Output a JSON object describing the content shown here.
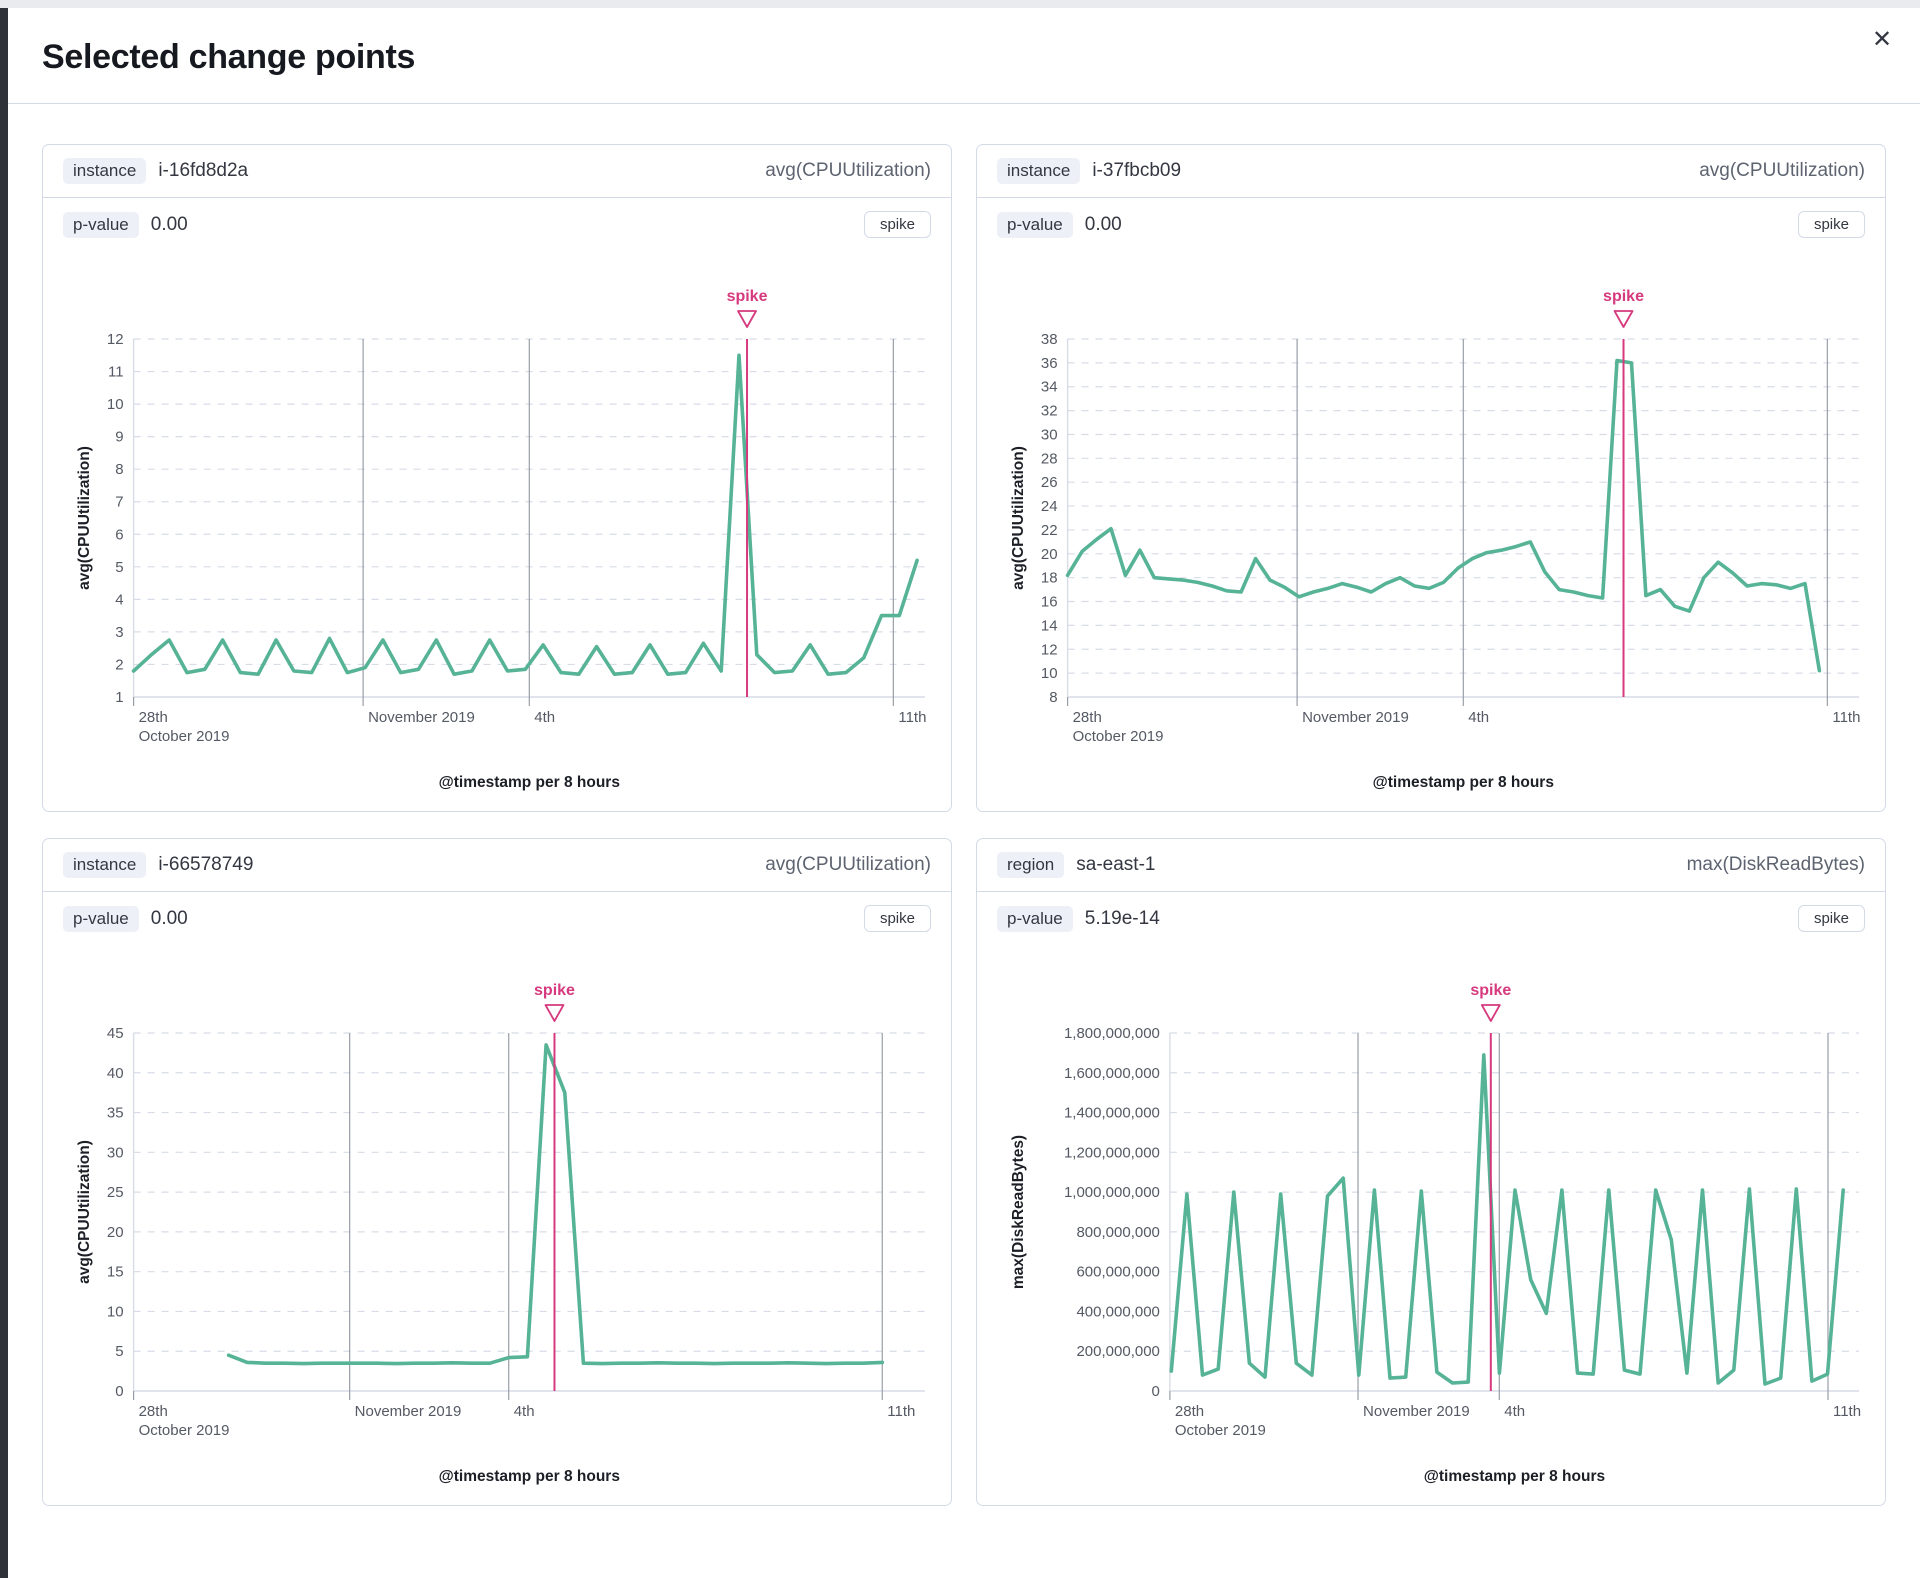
{
  "modal": {
    "title": "Selected change points",
    "close_icon": "✕"
  },
  "colors": {
    "line": "#56b396",
    "annotation": "#d6397d",
    "grid": "#d8dce7",
    "date_line": "#989ea8",
    "tick_text": "#545963",
    "axis_title": "#1c1f26"
  },
  "panels": [
    {
      "field_badge": "instance",
      "field_value": "i-16fd8d2a",
      "metric": "avg(CPUUtilization)",
      "pvalue_label": "p-value",
      "pvalue": "0.00",
      "change_type": "spike"
    },
    {
      "field_badge": "instance",
      "field_value": "i-37fbcb09",
      "metric": "avg(CPUUtilization)",
      "pvalue_label": "p-value",
      "pvalue": "0.00",
      "change_type": "spike"
    },
    {
      "field_badge": "instance",
      "field_value": "i-66578749",
      "metric": "avg(CPUUtilization)",
      "pvalue_label": "p-value",
      "pvalue": "0.00",
      "change_type": "spike"
    },
    {
      "field_badge": "region",
      "field_value": "sa-east-1",
      "metric": "max(DiskReadBytes)",
      "pvalue_label": "p-value",
      "pvalue": "5.19e-14",
      "change_type": "spike"
    }
  ],
  "chart_data": [
    {
      "type": "line",
      "title": "instance i-16fd8d2a avg(CPUUtilization)",
      "ylabel": "avg(CPUUtilization)",
      "xlabel": "@timestamp per 8 hours",
      "ylim": [
        1,
        12
      ],
      "yticks": [
        1,
        2,
        3,
        4,
        5,
        6,
        7,
        8,
        9,
        10,
        11,
        12
      ],
      "xticks": [
        {
          "lines": [
            "28th",
            "October 2019"
          ],
          "frac": 0.0,
          "grid_line": false
        },
        {
          "lines": [
            "November 2019"
          ],
          "frac": 0.29,
          "grid_line": true
        },
        {
          "lines": [
            "4th"
          ],
          "frac": 0.5,
          "grid_line": true
        },
        {
          "lines": [
            "11th"
          ],
          "frac": 0.96,
          "grid_line": true
        }
      ],
      "x_start_frac": 0.0,
      "x_end_frac": 0.99,
      "values": [
        1.8,
        2.3,
        2.75,
        1.75,
        1.85,
        2.75,
        1.75,
        1.7,
        2.75,
        1.8,
        1.75,
        2.8,
        1.75,
        1.9,
        2.75,
        1.75,
        1.85,
        2.75,
        1.7,
        1.8,
        2.75,
        1.8,
        1.85,
        2.6,
        1.75,
        1.7,
        2.55,
        1.7,
        1.75,
        2.6,
        1.7,
        1.75,
        2.65,
        1.8,
        11.5,
        2.3,
        1.75,
        1.8,
        2.6,
        1.7,
        1.75,
        2.2,
        3.5,
        3.5,
        5.2
      ],
      "spike_index": 34,
      "annotation_label": "spike",
      "legend": "none",
      "grid": "dashed-horizontal"
    },
    {
      "type": "line",
      "title": "instance i-37fbcb09 avg(CPUUtilization)",
      "ylabel": "avg(CPUUtilization)",
      "xlabel": "@timestamp per 8 hours",
      "ylim": [
        8,
        38
      ],
      "yticks": [
        8,
        10,
        12,
        14,
        16,
        18,
        20,
        22,
        24,
        26,
        28,
        30,
        32,
        34,
        36,
        38
      ],
      "xticks": [
        {
          "lines": [
            "28th",
            "October 2019"
          ],
          "frac": 0.0,
          "grid_line": false
        },
        {
          "lines": [
            "November 2019"
          ],
          "frac": 0.29,
          "grid_line": true
        },
        {
          "lines": [
            "4th"
          ],
          "frac": 0.5,
          "grid_line": true
        },
        {
          "lines": [
            "11th"
          ],
          "frac": 0.96,
          "grid_line": true
        }
      ],
      "x_start_frac": 0.0,
      "x_end_frac": 0.95,
      "values": [
        18.2,
        20.2,
        21.2,
        22.1,
        18.2,
        20.3,
        18.0,
        17.9,
        17.8,
        17.6,
        17.3,
        16.9,
        16.8,
        19.6,
        17.8,
        17.2,
        16.4,
        16.8,
        17.1,
        17.5,
        17.2,
        16.8,
        17.5,
        18.0,
        17.3,
        17.1,
        17.6,
        18.8,
        19.6,
        20.1,
        20.3,
        20.6,
        21.0,
        18.5,
        17.0,
        16.8,
        16.5,
        16.3,
        36.2,
        36.0,
        16.5,
        17.0,
        15.6,
        15.2,
        18.0,
        19.3,
        18.4,
        17.3,
        17.5,
        17.4,
        17.1,
        17.5,
        10.2
      ],
      "spike_index": 38,
      "annotation_label": "spike",
      "legend": "none",
      "grid": "dashed-horizontal"
    },
    {
      "type": "line",
      "title": "instance i-66578749 avg(CPUUtilization)",
      "ylabel": "avg(CPUUtilization)",
      "xlabel": "@timestamp per 8 hours",
      "ylim": [
        0,
        45
      ],
      "yticks": [
        0,
        5,
        10,
        15,
        20,
        25,
        30,
        35,
        40,
        45
      ],
      "xticks": [
        {
          "lines": [
            "28th",
            "October 2019"
          ],
          "frac": 0.0,
          "grid_line": false
        },
        {
          "lines": [
            "November 2019"
          ],
          "frac": 0.273,
          "grid_line": true
        },
        {
          "lines": [
            "4th"
          ],
          "frac": 0.474,
          "grid_line": true
        },
        {
          "lines": [
            "11th"
          ],
          "frac": 0.946,
          "grid_line": true
        }
      ],
      "x_start_frac": 0.12,
      "x_end_frac": 0.946,
      "values": [
        4.5,
        3.6,
        3.5,
        3.5,
        3.45,
        3.5,
        3.5,
        3.5,
        3.5,
        3.45,
        3.5,
        3.5,
        3.55,
        3.5,
        3.5,
        4.2,
        4.3,
        43.5,
        37.5,
        3.5,
        3.45,
        3.5,
        3.5,
        3.55,
        3.5,
        3.5,
        3.45,
        3.5,
        3.5,
        3.5,
        3.55,
        3.5,
        3.45,
        3.5,
        3.5,
        3.6
      ],
      "spike_index": 17,
      "annotation_label": "spike",
      "legend": "none",
      "grid": "dashed-horizontal"
    },
    {
      "type": "line",
      "title": "region sa-east-1 max(DiskReadBytes)",
      "ylabel": "max(DiskReadBytes)",
      "xlabel": "@timestamp per 8 hours",
      "ylim": [
        0,
        1800000000
      ],
      "yticks": [
        0,
        200000000,
        400000000,
        600000000,
        800000000,
        1000000000,
        1200000000,
        1400000000,
        1600000000,
        1800000000
      ],
      "xticks": [
        {
          "lines": [
            "28th",
            "October 2019"
          ],
          "frac": 0.0,
          "grid_line": false
        },
        {
          "lines": [
            "November 2019"
          ],
          "frac": 0.273,
          "grid_line": true
        },
        {
          "lines": [
            "4th"
          ],
          "frac": 0.478,
          "grid_line": true
        },
        {
          "lines": [
            "11th"
          ],
          "frac": 0.955,
          "grid_line": true
        }
      ],
      "x_start_frac": 0.002,
      "x_end_frac": 0.977,
      "values": [
        100000000,
        990000000,
        80000000,
        110000000,
        1000000000,
        140000000,
        70000000,
        990000000,
        140000000,
        80000000,
        980000000,
        1070000000,
        80000000,
        1010000000,
        65000000,
        70000000,
        1005000000,
        95000000,
        40000000,
        45000000,
        1690000000,
        90000000,
        1010000000,
        560000000,
        390000000,
        1010000000,
        90000000,
        85000000,
        1010000000,
        105000000,
        85000000,
        1010000000,
        760000000,
        90000000,
        1010000000,
        40000000,
        105000000,
        1015000000,
        35000000,
        65000000,
        1015000000,
        50000000,
        85000000,
        1010000000
      ],
      "spike_index": 20,
      "annotation_label": "spike",
      "legend": "none",
      "grid": "dashed-horizontal"
    }
  ]
}
